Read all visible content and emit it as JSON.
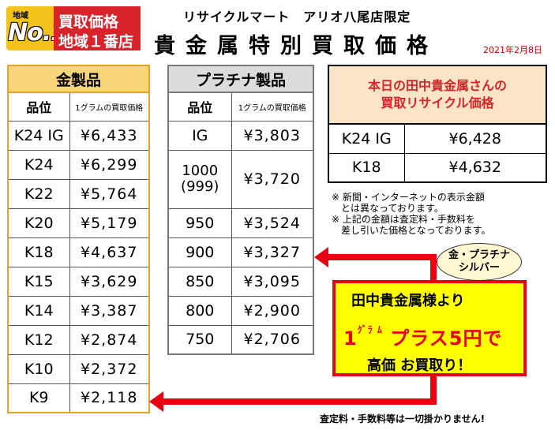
{
  "badge": {
    "small": "地域",
    "big": "No.1",
    "line1": "買取価格",
    "line2": "地域１番店"
  },
  "store": "リサイクルマート　アリオ八尾店限定",
  "title": "貴金属特別買取価格",
  "date": "2021年2月8日",
  "gold_table": {
    "title": "金製品",
    "col_grade": "品位",
    "col_price": "1グラムの買取価格",
    "rows": [
      {
        "grade": "K24 IG",
        "price": "¥6,433"
      },
      {
        "grade": "K24",
        "price": "¥6,299"
      },
      {
        "grade": "K22",
        "price": "¥5,764"
      },
      {
        "grade": "K20",
        "price": "¥5,179"
      },
      {
        "grade": "K18",
        "price": "¥4,637"
      },
      {
        "grade": "K15",
        "price": "¥3,629"
      },
      {
        "grade": "K14",
        "price": "¥3,387"
      },
      {
        "grade": "K12",
        "price": "¥2,874"
      },
      {
        "grade": "K10",
        "price": "¥2,372"
      },
      {
        "grade": "K9",
        "price": "¥2,118"
      }
    ]
  },
  "platinum_table": {
    "title": "プラチナ製品",
    "col_grade": "品位",
    "col_price": "1グラムの買取価格",
    "rows": [
      {
        "grade": "IG",
        "price": "¥3,803"
      },
      {
        "grade": "1000",
        "grade2": "(999)",
        "price": "¥3,720"
      },
      {
        "grade": "950",
        "price": "¥3,524"
      },
      {
        "grade": "900",
        "price": "¥3,327"
      },
      {
        "grade": "850",
        "price": "¥3,095"
      },
      {
        "grade": "800",
        "price": "¥2,900"
      },
      {
        "grade": "750",
        "price": "¥2,706"
      }
    ]
  },
  "today_table": {
    "title1": "本日の田中貴金属さんの",
    "title2": "買取リサイクル価格",
    "rows": [
      {
        "grade": "K24 IG",
        "price": "¥6,428"
      },
      {
        "grade": "K18",
        "price": "¥4,632"
      }
    ]
  },
  "notes": [
    "※ 新聞・インターネットの表示金額",
    "　とは異なっております。",
    "※ 上記の金額は査定料・手数料を",
    "　差し引いた価格となっております。"
  ],
  "bubble": {
    "line1": "金・プラチナ",
    "line2": "シルバー"
  },
  "promo": {
    "line1": "田中貴金属様より",
    "one": "1",
    "gram": "ｸﾞﾗ\nﾑ",
    "plus": "プラス5円で",
    "line3": "高価 お買取り！"
  },
  "footer": "査定料・手数料等は一切掛かりません!",
  "colors": {
    "accent_red": "#e60012",
    "gold_header": "#f7d67c",
    "promo_yellow": "#ffff00"
  }
}
